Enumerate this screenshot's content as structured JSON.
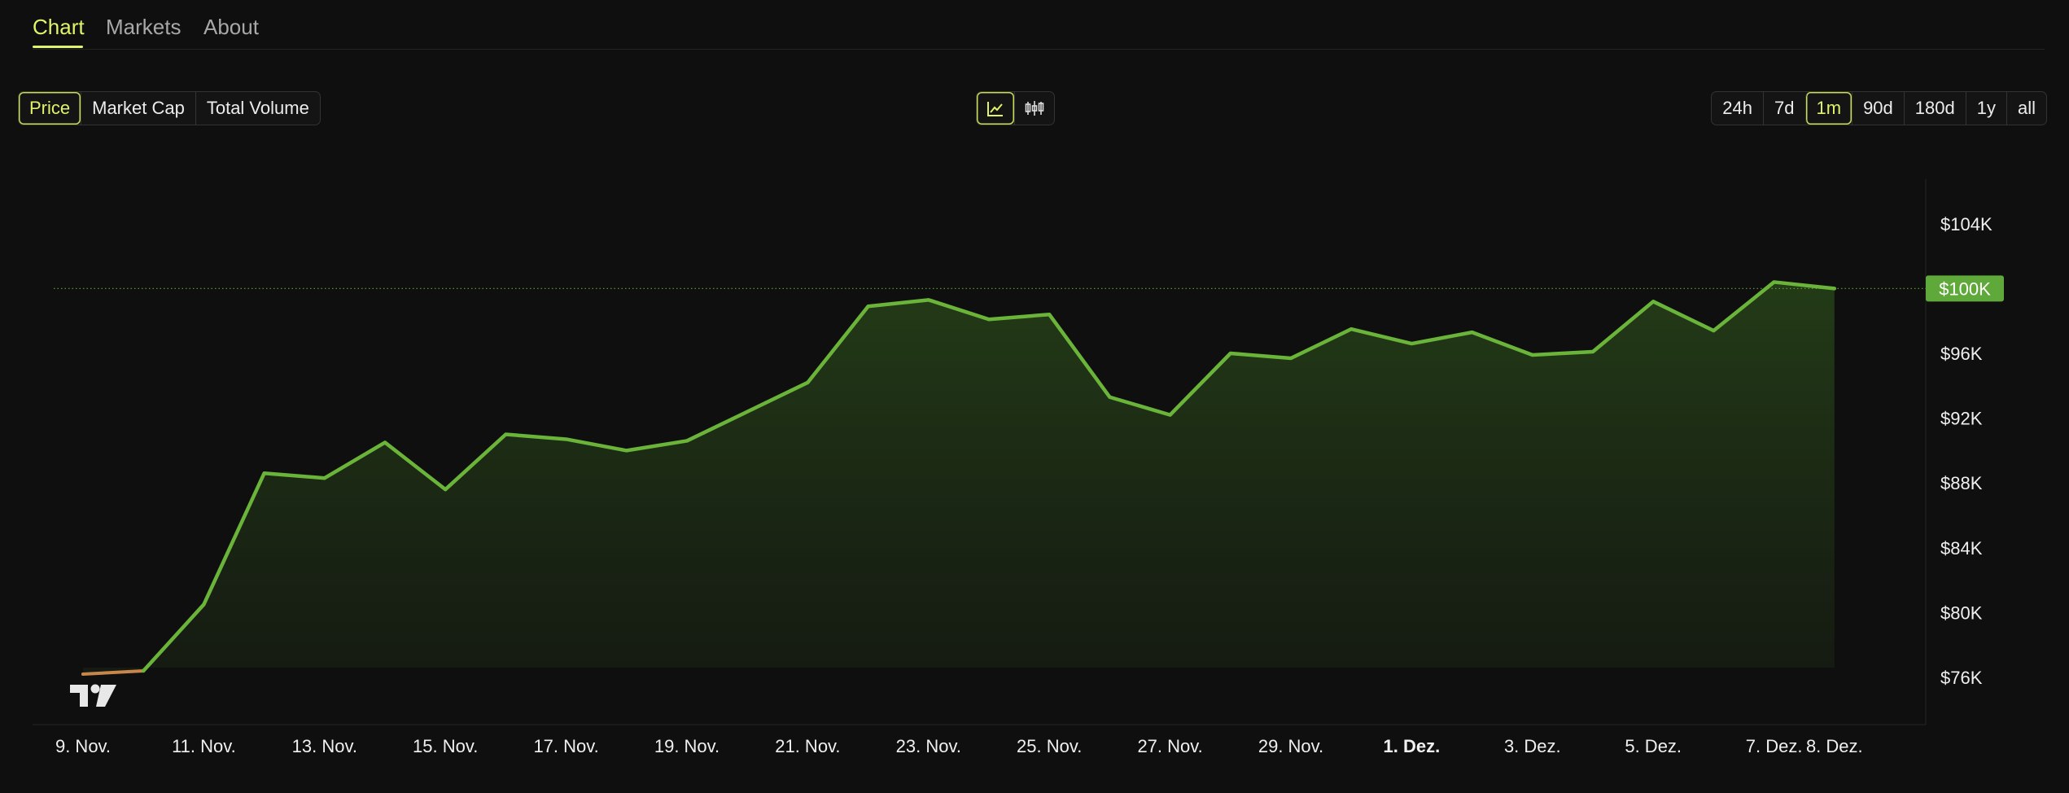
{
  "tabs": [
    {
      "label": "Chart",
      "active": true
    },
    {
      "label": "Markets",
      "active": false
    },
    {
      "label": "About",
      "active": false
    }
  ],
  "metric_buttons": [
    {
      "label": "Price",
      "active": true
    },
    {
      "label": "Market Cap",
      "active": false
    },
    {
      "label": "Total Volume",
      "active": false
    }
  ],
  "chart_type_buttons": [
    {
      "icon": "line-chart-icon",
      "active": true
    },
    {
      "icon": "candlestick-chart-icon",
      "active": false
    }
  ],
  "range_buttons": [
    {
      "label": "24h",
      "active": false
    },
    {
      "label": "7d",
      "active": false
    },
    {
      "label": "1m",
      "active": true
    },
    {
      "label": "90d",
      "active": false
    },
    {
      "label": "180d",
      "active": false
    },
    {
      "label": "1y",
      "active": false
    },
    {
      "label": "all",
      "active": false
    }
  ],
  "colors": {
    "accent": "#e1f26b",
    "line": "#6ab43a",
    "line_start": "#c8874a",
    "current_badge": "#5fa83a"
  },
  "chart_data": {
    "type": "area",
    "x": [
      "9. Nov.",
      "10. Nov.",
      "11. Nov.",
      "12. Nov.",
      "13. Nov.",
      "14. Nov.",
      "15. Nov.",
      "16. Nov.",
      "17. Nov.",
      "18. Nov.",
      "19. Nov.",
      "20. Nov.",
      "21. Nov.",
      "22. Nov.",
      "23. Nov.",
      "24. Nov.",
      "25. Nov.",
      "26. Nov.",
      "27. Nov.",
      "28. Nov.",
      "29. Nov.",
      "30. Nov.",
      "1. Dez.",
      "2. Dez.",
      "3. Dez.",
      "4. Dez.",
      "5. Dez.",
      "6. Dez.",
      "7. Dez.",
      "8. Dez."
    ],
    "values": [
      76200,
      76400,
      80500,
      88600,
      88300,
      90500,
      87600,
      91000,
      90700,
      90000,
      90600,
      92400,
      94200,
      98900,
      99300,
      98100,
      98400,
      93300,
      92200,
      96000,
      95700,
      97500,
      96600,
      97300,
      95900,
      96100,
      99200,
      97400,
      100400,
      100000
    ],
    "x_ticks": [
      "9. Nov.",
      "11. Nov.",
      "13. Nov.",
      "15. Nov.",
      "17. Nov.",
      "19. Nov.",
      "21. Nov.",
      "23. Nov.",
      "25. Nov.",
      "27. Nov.",
      "29. Nov.",
      "1. Dez.",
      "3. Dez.",
      "5. Dez.",
      "7. Dez.",
      "8. Dez."
    ],
    "y_ticks": [
      "$76K",
      "$80K",
      "$84K",
      "$88K",
      "$92K",
      "$96K",
      "$100K",
      "$104K"
    ],
    "y_tick_values": [
      76000,
      80000,
      84000,
      88000,
      92000,
      96000,
      100000,
      104000
    ],
    "current_value_label": "$100K",
    "current_value": 100000,
    "bold_tick": "1. Dez.",
    "grid": false,
    "title": "",
    "xlabel": "",
    "ylabel": ""
  }
}
